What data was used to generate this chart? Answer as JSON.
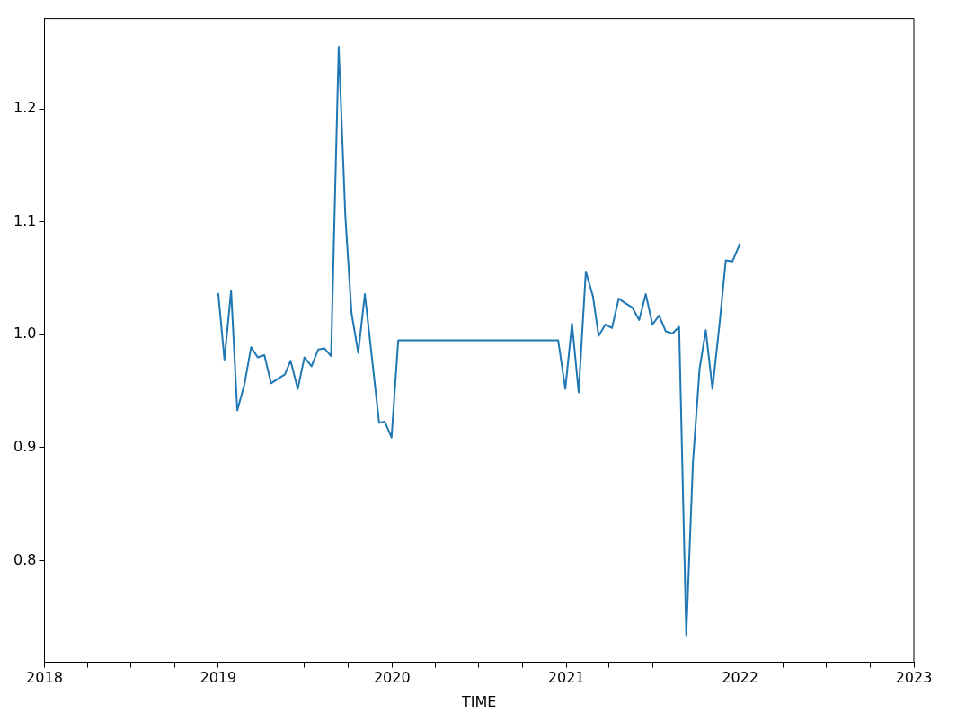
{
  "chart_data": {
    "type": "line",
    "xlabel": "TIME",
    "xlim": [
      "2018",
      "2023"
    ],
    "xticks": [
      {
        "value": "2018",
        "label": "2018"
      },
      {
        "value": "2018-04",
        "label": null
      },
      {
        "value": "2018-07",
        "label": null
      },
      {
        "value": "2018-10",
        "label": null
      },
      {
        "value": "2019",
        "label": "2019"
      },
      {
        "value": "2019-04",
        "label": null
      },
      {
        "value": "2019-07",
        "label": null
      },
      {
        "value": "2019-10",
        "label": null
      },
      {
        "value": "2020",
        "label": "2020"
      },
      {
        "value": "2020-04",
        "label": null
      },
      {
        "value": "2020-07",
        "label": null
      },
      {
        "value": "2020-10",
        "label": null
      },
      {
        "value": "2021",
        "label": "2021"
      },
      {
        "value": "2021-04",
        "label": null
      },
      {
        "value": "2021-07",
        "label": null
      },
      {
        "value": "2021-10",
        "label": null
      },
      {
        "value": "2022",
        "label": "2022"
      },
      {
        "value": "2022-04",
        "label": null
      },
      {
        "value": "2022-07",
        "label": null
      },
      {
        "value": "2022-10",
        "label": null
      },
      {
        "value": "2023",
        "label": "2023"
      }
    ],
    "ylim": [
      0.71,
      1.28
    ],
    "yticks": [
      0.8,
      0.9,
      {
        "value": 1,
        "label": "1.0"
      },
      1.1,
      1.2
    ],
    "grid": false,
    "x": [
      "2019-01-01",
      "2019-01-14",
      "2019-01-28",
      "2019-02-10",
      "2019-02-25",
      "2019-03-11",
      "2019-03-25",
      "2019-04-08",
      "2019-04-22",
      "2019-05-06",
      "2019-05-21",
      "2019-06-02",
      "2019-06-17",
      "2019-07-01",
      "2019-07-16",
      "2019-07-30",
      "2019-08-12",
      "2019-08-26",
      "2019-09-11",
      "2019-09-25",
      "2019-10-08",
      "2019-10-22",
      "2019-11-05",
      "2019-12-05",
      "2019-12-17",
      "2019-12-31",
      "2020-01-14",
      "2020-12-15",
      "2020-12-30",
      "2021-01-13",
      "2021-01-27",
      "2021-02-11",
      "2021-02-26",
      "2021-03-10",
      "2021-03-24",
      "2021-04-07",
      "2021-04-21",
      "2021-05-05",
      "2021-05-20",
      "2021-06-03",
      "2021-06-17",
      "2021-07-01",
      "2021-07-15",
      "2021-07-29",
      "2021-08-12",
      "2021-08-26",
      "2021-09-10",
      "2021-09-24",
      "2021-10-08",
      "2021-10-21",
      "2021-11-04",
      "2021-11-19",
      "2021-12-02",
      "2021-12-16",
      "2022-01-01"
    ],
    "series": [
      {
        "color": "#1f77b4",
        "values": [
          1.037,
          0.978,
          1.039,
          0.933,
          0.956,
          0.989,
          0.98,
          0.982,
          0.957,
          0.961,
          0.965,
          0.977,
          0.952,
          0.98,
          0.972,
          0.987,
          0.988,
          0.981,
          1.255,
          1.105,
          1.019,
          0.984,
          1.036,
          0.922,
          0.923,
          0.909,
          0.995,
          0.995,
          0.952,
          1.01,
          0.949,
          1.056,
          1.034,
          0.999,
          1.009,
          1.006,
          1.032,
          1.028,
          1.024,
          1.013,
          1.036,
          1.009,
          1.017,
          1.003,
          1.001,
          1.007,
          0.734,
          0.887,
          0.97,
          1.004,
          0.952,
          1.01,
          1.066,
          1.065,
          1.081
        ]
      }
    ]
  }
}
